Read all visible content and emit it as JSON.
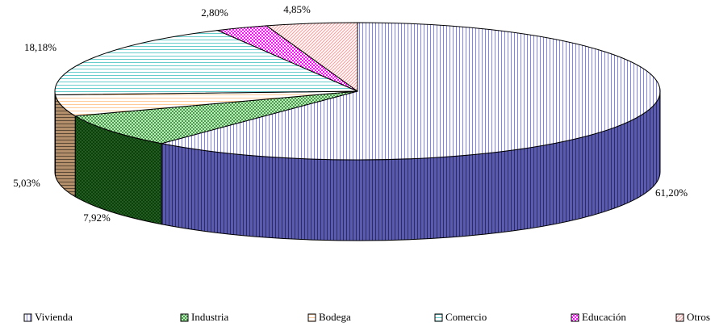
{
  "chart_data": {
    "type": "pie3d",
    "categories": [
      "Vivienda",
      "Industria",
      "Bodega",
      "Comercio",
      "Educación",
      "Otros"
    ],
    "values": [
      61.2,
      7.92,
      5.03,
      18.18,
      2.8,
      4.85
    ],
    "value_labels": [
      "61,20%",
      "7,92%",
      "5,03%",
      "18,18%",
      "2,80%",
      "4,85%"
    ],
    "colors": [
      "#8080ff",
      "#2f9e2f",
      "#ffcc99",
      "#66cccc",
      "#ff00ff",
      "#ff9999"
    ],
    "legend": "bottom"
  }
}
